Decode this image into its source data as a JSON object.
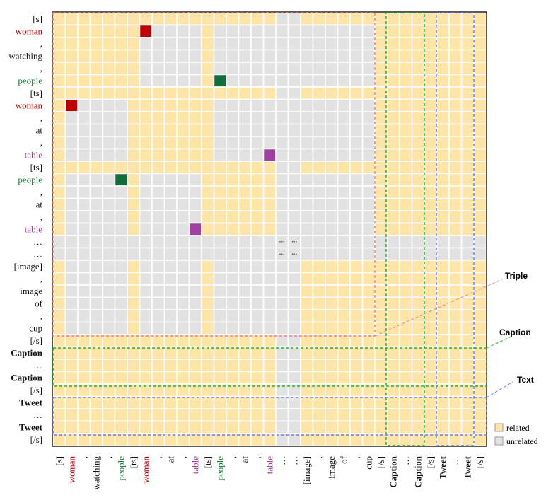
{
  "tokens": [
    {
      "text": "[s]"
    },
    {
      "text": "woman",
      "color": "#c00000"
    },
    {
      "text": ","
    },
    {
      "text": "watching"
    },
    {
      "text": ","
    },
    {
      "text": "people",
      "color": "#1a7a3a"
    },
    {
      "text": "[ts]"
    },
    {
      "text": "woman",
      "color": "#c00000"
    },
    {
      "text": ","
    },
    {
      "text": "at"
    },
    {
      "text": ","
    },
    {
      "text": "table",
      "color": "#a040a0"
    },
    {
      "text": "[ts]"
    },
    {
      "text": "people",
      "color": "#1a7a3a"
    },
    {
      "text": ","
    },
    {
      "text": "at"
    },
    {
      "text": ","
    },
    {
      "text": "table",
      "color": "#a040a0"
    },
    {
      "text": "…"
    },
    {
      "text": "…"
    },
    {
      "text": "[image]"
    },
    {
      "text": ","
    },
    {
      "text": "image"
    },
    {
      "text": "of"
    },
    {
      "text": ","
    },
    {
      "text": "cup"
    },
    {
      "text": "[/s]"
    },
    {
      "text": "Caption",
      "bold": true
    },
    {
      "text": "…"
    },
    {
      "text": "Caption",
      "bold": true
    },
    {
      "text": "[/s]"
    },
    {
      "text": "Tweet",
      "bold": true
    },
    {
      "text": "…"
    },
    {
      "text": "Tweet",
      "bold": true
    },
    {
      "text": "[/s]"
    }
  ],
  "callouts": {
    "triple": "Triple",
    "caption": "Caption",
    "text": "Text"
  },
  "legend": {
    "related": "related",
    "unrelated": "unrelated"
  }
}
